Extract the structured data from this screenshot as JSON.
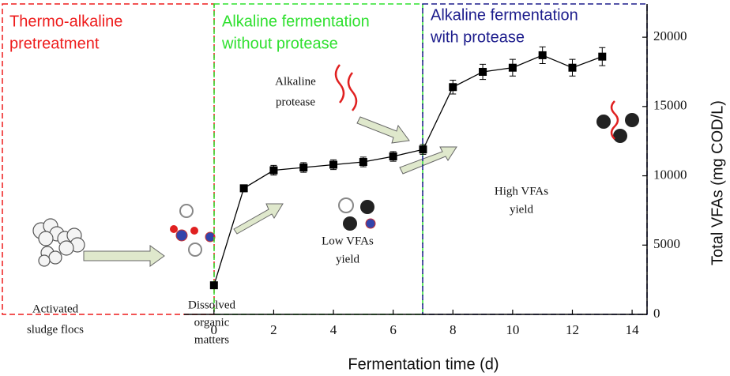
{
  "chart_data": {
    "type": "line",
    "xlabel": "Fermentation time (d)",
    "ylabel": "Total VFAs (mg COD/L)",
    "x": [
      0,
      1,
      2,
      3,
      4,
      5,
      6,
      7,
      8,
      9,
      10,
      11,
      12,
      13
    ],
    "series": [
      {
        "color": "#000000",
        "values": [
          2100,
          9100,
          10400,
          10600,
          10800,
          11000,
          11400,
          11900,
          16400,
          17500,
          17800,
          18700,
          17800,
          18600
        ],
        "errors": [
          200,
          250,
          350,
          350,
          350,
          350,
          350,
          350,
          500,
          550,
          600,
          600,
          600,
          650
        ]
      }
    ],
    "xlim": [
      -1,
      14.5
    ],
    "xticks": [
      0,
      2,
      4,
      6,
      8,
      10,
      12,
      14
    ],
    "ylim": [
      0,
      22400
    ],
    "yticks": [
      0,
      5000,
      10000,
      15000,
      20000
    ],
    "phases": [
      {
        "lines": [
          "Thermo-alkaline",
          "pretreatment"
        ],
        "color": "#ee1c1c"
      },
      {
        "lines": [
          "Alkaline fermentation",
          "without protease"
        ],
        "color": "#2fe02f"
      },
      {
        "lines": [
          "Alkaline fermentation",
          "with protease"
        ],
        "color": "#1c1c8c"
      }
    ],
    "annotations": [
      [
        "Alkaline",
        "protease"
      ],
      [
        "Activated",
        "sludge flocs"
      ],
      [
        "Dissolved",
        "organic",
        "matters"
      ],
      [
        "Low VFAs",
        "yield"
      ],
      [
        "High VFAs",
        "yield"
      ]
    ]
  }
}
